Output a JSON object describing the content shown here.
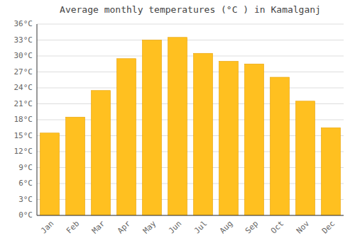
{
  "chart_data": {
    "type": "bar",
    "title": "Average monthly temperatures (°C ) in Kamalganj",
    "categories": [
      "Jan",
      "Feb",
      "Mar",
      "Apr",
      "May",
      "Jun",
      "Jul",
      "Aug",
      "Sep",
      "Oct",
      "Nov",
      "Dec"
    ],
    "values": [
      15.5,
      18.5,
      23.5,
      29.5,
      33.0,
      33.5,
      30.5,
      29.0,
      28.5,
      26.0,
      21.5,
      16.5
    ],
    "color": "#FFC020",
    "ylim": [
      0,
      36
    ],
    "yticks": [
      {
        "value": 0,
        "label": "0°C"
      },
      {
        "value": 3,
        "label": "3°C"
      },
      {
        "value": 6,
        "label": "6°C"
      },
      {
        "value": 9,
        "label": "9°C"
      },
      {
        "value": 12,
        "label": "12°C"
      },
      {
        "value": 15,
        "label": "15°C"
      },
      {
        "value": 18,
        "label": "18°C"
      },
      {
        "value": 21,
        "label": "21°C"
      },
      {
        "value": 24,
        "label": "24°C"
      },
      {
        "value": 27,
        "label": "27°C"
      },
      {
        "value": 30,
        "label": "30°C"
      },
      {
        "value": 33,
        "label": "33°C"
      },
      {
        "value": 36,
        "label": "36°C"
      }
    ],
    "grid": true
  }
}
